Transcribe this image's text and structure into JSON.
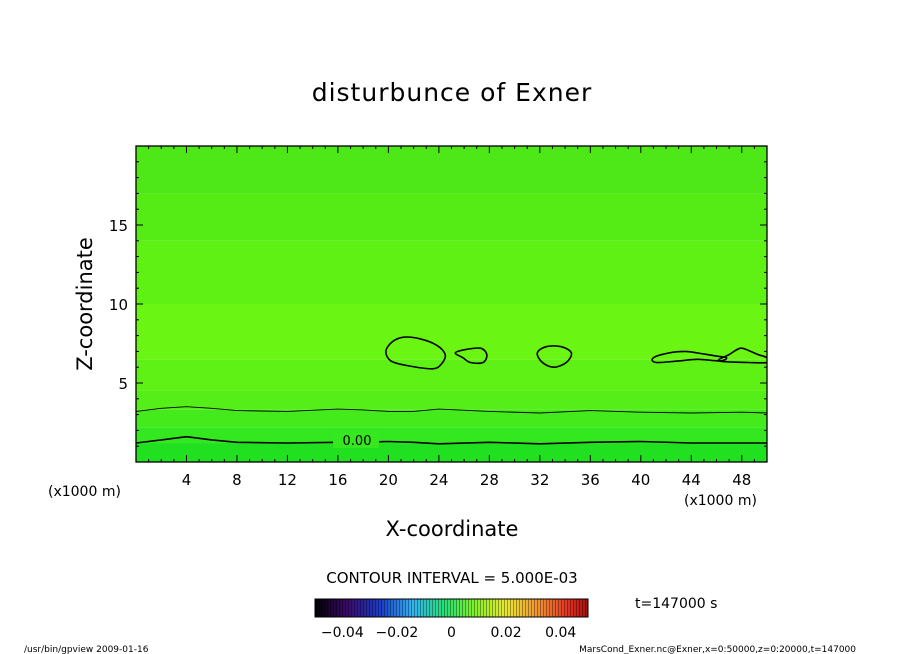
{
  "chart_data": {
    "type": "heatmap",
    "title": "disturbunce of Exner",
    "xlabel": "X-coordinate",
    "ylabel": "Z-coordinate",
    "x_unit_left": "(x1000 m)",
    "x_unit_right": "(x1000 m)",
    "xlim": [
      0,
      50
    ],
    "ylim": [
      0,
      20
    ],
    "x_ticks": [
      {
        "value": 4,
        "label": "4"
      },
      {
        "value": 8,
        "label": "8"
      },
      {
        "value": 12,
        "label": "12"
      },
      {
        "value": 16,
        "label": "16"
      },
      {
        "value": 20,
        "label": "20"
      },
      {
        "value": 24,
        "label": "24"
      },
      {
        "value": 28,
        "label": "28"
      },
      {
        "value": 32,
        "label": "32"
      },
      {
        "value": 36,
        "label": "36"
      },
      {
        "value": 40,
        "label": "40"
      },
      {
        "value": 44,
        "label": "44"
      },
      {
        "value": 48,
        "label": "48"
      }
    ],
    "y_ticks": [
      {
        "value": 5,
        "label": "5"
      },
      {
        "value": 10,
        "label": "10"
      },
      {
        "value": 15,
        "label": "15"
      }
    ],
    "contour_interval_text": "CONTOUR INTERVAL = 5.000E-03",
    "contour_label": "0.00",
    "time_text": "t=147000 s",
    "colorbar": {
      "range": [
        -0.05,
        0.05
      ],
      "tick_labels": [
        {
          "value": -0.04,
          "label": "−0.04"
        },
        {
          "value": -0.02,
          "label": "−0.02"
        },
        {
          "value": 0,
          "label": "0"
        },
        {
          "value": 0.02,
          "label": "0.02"
        },
        {
          "value": 0.04,
          "label": "0.04"
        }
      ]
    },
    "field_bands": [
      {
        "z_min": 0.0,
        "z_max": 1.2,
        "color": "#20e020"
      },
      {
        "z_min": 1.2,
        "z_max": 2.2,
        "color": "#33e81f"
      },
      {
        "z_min": 2.2,
        "z_max": 3.3,
        "color": "#45ea1c"
      },
      {
        "z_min": 3.3,
        "z_max": 4.5,
        "color": "#55ee18"
      },
      {
        "z_min": 4.5,
        "z_max": 6.5,
        "color": "#5ff016"
      },
      {
        "z_min": 6.5,
        "z_max": 10.0,
        "color": "#6af512"
      },
      {
        "z_min": 10.0,
        "z_max": 14.0,
        "color": "#5ff014"
      },
      {
        "z_min": 14.0,
        "z_max": 17.0,
        "color": "#55ec16"
      },
      {
        "z_min": 17.0,
        "z_max": 20.0,
        "color": "#4ee818"
      }
    ],
    "contours": [
      {
        "name": "zero",
        "stroke_width": 1.6,
        "closed": false,
        "points": [
          [
            0,
            1.2
          ],
          [
            2,
            1.4
          ],
          [
            4,
            1.6
          ],
          [
            6,
            1.4
          ],
          [
            8,
            1.25
          ],
          [
            12,
            1.2
          ],
          [
            16,
            1.25
          ],
          [
            18,
            1.25
          ],
          [
            20,
            1.3
          ],
          [
            22,
            1.25
          ],
          [
            24,
            1.15
          ],
          [
            28,
            1.25
          ],
          [
            32,
            1.15
          ],
          [
            36,
            1.25
          ],
          [
            40,
            1.3
          ],
          [
            44,
            1.2
          ],
          [
            48,
            1.2
          ],
          [
            50,
            1.2
          ]
        ]
      },
      {
        "name": "upper",
        "stroke_width": 0.9,
        "closed": false,
        "points": [
          [
            0,
            3.2
          ],
          [
            2,
            3.4
          ],
          [
            4,
            3.5
          ],
          [
            6,
            3.4
          ],
          [
            8,
            3.25
          ],
          [
            12,
            3.2
          ],
          [
            16,
            3.35
          ],
          [
            18,
            3.3
          ],
          [
            20,
            3.2
          ],
          [
            22,
            3.2
          ],
          [
            24,
            3.35
          ],
          [
            28,
            3.2
          ],
          [
            32,
            3.1
          ],
          [
            36,
            3.25
          ],
          [
            40,
            3.15
          ],
          [
            44,
            3.1
          ],
          [
            48,
            3.15
          ],
          [
            50,
            3.1
          ]
        ]
      },
      {
        "name": "cell-a",
        "stroke_width": 1.6,
        "closed": true,
        "points": [
          [
            19.8,
            7.0
          ],
          [
            20.3,
            7.6
          ],
          [
            21.2,
            7.9
          ],
          [
            22.5,
            7.8
          ],
          [
            23.8,
            7.4
          ],
          [
            24.5,
            6.8
          ],
          [
            24.2,
            6.2
          ],
          [
            23.5,
            5.9
          ],
          [
            21.5,
            6.1
          ],
          [
            20.2,
            6.4
          ]
        ]
      },
      {
        "name": "cell-b",
        "stroke_width": 1.6,
        "closed": true,
        "points": [
          [
            25.3,
            6.9
          ],
          [
            26,
            7.1
          ],
          [
            27.3,
            7.2
          ],
          [
            27.8,
            6.8
          ],
          [
            27.5,
            6.3
          ],
          [
            26.5,
            6.3
          ],
          [
            25.9,
            6.6
          ]
        ]
      },
      {
        "name": "cell-c",
        "stroke_width": 1.6,
        "closed": true,
        "points": [
          [
            31.8,
            6.9
          ],
          [
            32.5,
            7.3
          ],
          [
            33.7,
            7.3
          ],
          [
            34.5,
            6.9
          ],
          [
            34.1,
            6.3
          ],
          [
            33.1,
            6.0
          ],
          [
            32.2,
            6.3
          ]
        ]
      },
      {
        "name": "cell-d",
        "stroke_width": 1.6,
        "closed": true,
        "points": [
          [
            41.0,
            6.6
          ],
          [
            42.2,
            6.9
          ],
          [
            43.5,
            7.0
          ],
          [
            44.5,
            6.9
          ],
          [
            46.0,
            6.7
          ],
          [
            46.8,
            6.6
          ],
          [
            46.3,
            6.4
          ],
          [
            44.5,
            6.5
          ],
          [
            43.0,
            6.4
          ],
          [
            41.2,
            6.3
          ]
        ]
      },
      {
        "name": "cell-e",
        "stroke_width": 1.6,
        "closed": true,
        "points": [
          [
            46.2,
            6.4
          ],
          [
            47.0,
            6.8
          ],
          [
            47.9,
            7.2
          ],
          [
            48.7,
            7.0
          ],
          [
            49.3,
            6.8
          ],
          [
            50,
            6.6
          ],
          [
            50,
            6.3
          ],
          [
            48.5,
            6.3
          ]
        ]
      }
    ]
  },
  "footer": {
    "left": "/usr/bin/gpview  2009-01-16",
    "right": "MarsCond_Exner.nc@Exner,x=0:50000,z=0:20000,t=147000"
  }
}
